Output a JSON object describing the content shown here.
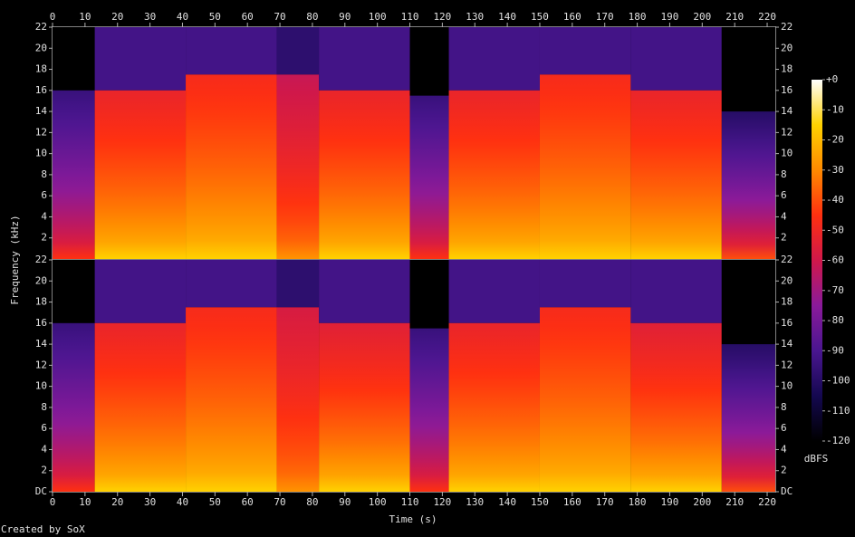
{
  "chart_data": {
    "type": "spectrogram",
    "xlabel": "Time (s)",
    "ylabel": "Frequency (kHz)",
    "xlim": [
      0,
      222.5
    ],
    "xticks": [
      0,
      10,
      20,
      30,
      40,
      50,
      60,
      70,
      80,
      90,
      100,
      110,
      120,
      130,
      140,
      150,
      160,
      170,
      180,
      190,
      200,
      210,
      220
    ],
    "colormap": [
      "#000000",
      "#140850",
      "#4a1690",
      "#8a1a9a",
      "#d0184a",
      "#ff3010",
      "#ff8a00",
      "#ffd200",
      "#ffffff"
    ],
    "colorbar": {
      "label": "dBFS",
      "zlim": [
        -120,
        0
      ],
      "ticks": [
        {
          "value": 0,
          "label": "+0"
        },
        -10,
        -20,
        -30,
        -40,
        -50,
        -60,
        -70,
        -80,
        -90,
        -100,
        -110,
        -120
      ]
    },
    "panels": [
      {
        "ylim": [
          0,
          22
        ],
        "yticks": [
          2,
          4,
          6,
          8,
          10,
          12,
          14,
          16,
          18,
          20,
          22
        ],
        "segments": [
          {
            "start": 0,
            "end": 13,
            "cutoff": 16,
            "db_low": -45,
            "db_high": -95,
            "floor_db": -120
          },
          {
            "start": 13,
            "end": 41,
            "cutoff": 16,
            "db_low": -15,
            "db_high": -52,
            "floor_db": -92
          },
          {
            "start": 41,
            "end": 69,
            "cutoff": 17.5,
            "db_low": -15,
            "db_high": -48,
            "floor_db": -92
          },
          {
            "start": 69,
            "end": 82,
            "cutoff": 17.5,
            "db_low": -28,
            "db_high": -62,
            "floor_db": -98
          },
          {
            "start": 82,
            "end": 110,
            "cutoff": 16,
            "db_low": -15,
            "db_high": -52,
            "floor_db": -92
          },
          {
            "start": 110,
            "end": 122,
            "cutoff": 15.5,
            "db_low": -45,
            "db_high": -95,
            "floor_db": -120
          },
          {
            "start": 122,
            "end": 150,
            "cutoff": 16,
            "db_low": -15,
            "db_high": -52,
            "floor_db": -92
          },
          {
            "start": 150,
            "end": 178,
            "cutoff": 17.5,
            "db_low": -15,
            "db_high": -48,
            "floor_db": -92
          },
          {
            "start": 178,
            "end": 206,
            "cutoff": 16,
            "db_low": -15,
            "db_high": -52,
            "floor_db": -92
          },
          {
            "start": 206,
            "end": 222.5,
            "cutoff": 14,
            "db_low": -40,
            "db_high": -100,
            "floor_db": -120
          }
        ]
      },
      {
        "ylim": [
          0,
          22
        ],
        "yticks": [
          {
            "value": 0,
            "label": "DC"
          },
          2,
          4,
          6,
          8,
          10,
          12,
          14,
          16,
          18,
          20,
          22
        ],
        "segments": [
          {
            "start": 0,
            "end": 13,
            "cutoff": 16,
            "db_low": -45,
            "db_high": -95,
            "floor_db": -120
          },
          {
            "start": 13,
            "end": 41,
            "cutoff": 16,
            "db_low": -15,
            "db_high": -52,
            "floor_db": -92
          },
          {
            "start": 41,
            "end": 69,
            "cutoff": 17.5,
            "db_low": -15,
            "db_high": -48,
            "floor_db": -92
          },
          {
            "start": 69,
            "end": 82,
            "cutoff": 17.5,
            "db_low": -28,
            "db_high": -58,
            "floor_db": -98
          },
          {
            "start": 82,
            "end": 110,
            "cutoff": 16,
            "db_low": -15,
            "db_high": -55,
            "floor_db": -92
          },
          {
            "start": 110,
            "end": 122,
            "cutoff": 15.5,
            "db_low": -45,
            "db_high": -95,
            "floor_db": -120
          },
          {
            "start": 122,
            "end": 150,
            "cutoff": 16,
            "db_low": -15,
            "db_high": -52,
            "floor_db": -92
          },
          {
            "start": 150,
            "end": 178,
            "cutoff": 17.5,
            "db_low": -15,
            "db_high": -48,
            "floor_db": -92
          },
          {
            "start": 178,
            "end": 206,
            "cutoff": 16,
            "db_low": -15,
            "db_high": -55,
            "floor_db": -92
          },
          {
            "start": 206,
            "end": 222.5,
            "cutoff": 14,
            "db_low": -40,
            "db_high": -100,
            "floor_db": -120
          }
        ]
      }
    ]
  },
  "credit": "Created by SoX"
}
